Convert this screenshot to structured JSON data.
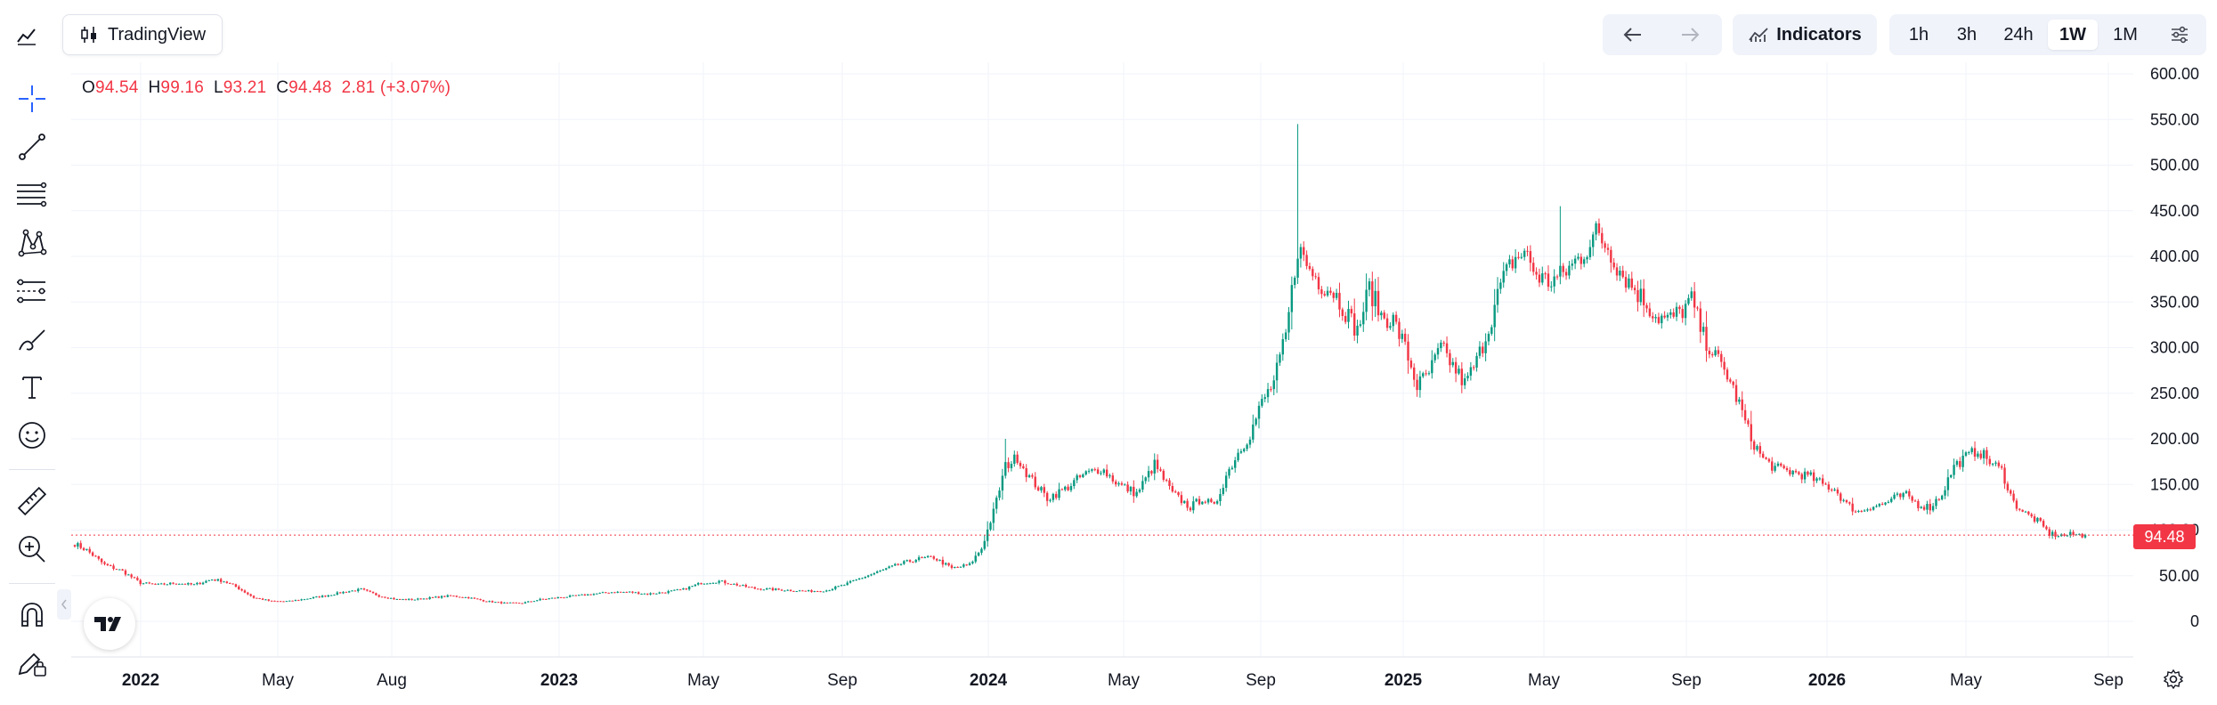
{
  "header": {
    "app_name": "TradingView",
    "indicators_label": "Indicators",
    "timeframes": [
      "1h",
      "3h",
      "24h",
      "1W",
      "1M"
    ],
    "active_timeframe": "1W"
  },
  "legend": {
    "o_key": "O",
    "o_val": "94.54",
    "h_key": "H",
    "h_val": "99.16",
    "l_key": "L",
    "l_val": "93.21",
    "c_key": "C",
    "c_val": "94.48",
    "change": "2.81 (+3.07%)"
  },
  "last_price_label": "94.48",
  "colors": {
    "up": "#089981",
    "down": "#f23645",
    "accent": "#2962ff"
  },
  "chart_data": {
    "type": "candlestick",
    "y_ticks": [
      "600.00",
      "550.00",
      "500.00",
      "450.00",
      "400.00",
      "350.00",
      "300.00",
      "250.00",
      "200.00",
      "150.00",
      "100.00",
      "50.00",
      "0"
    ],
    "y_tick_values": [
      600,
      550,
      500,
      450,
      400,
      350,
      300,
      250,
      200,
      150,
      100,
      50,
      0
    ],
    "ylim": [
      -10,
      610
    ],
    "x_ticks": [
      {
        "label": "2022",
        "bold": true
      },
      {
        "label": "May",
        "bold": false
      },
      {
        "label": "Aug",
        "bold": false
      },
      {
        "label": "2023",
        "bold": true
      },
      {
        "label": "May",
        "bold": false
      },
      {
        "label": "Sep",
        "bold": false
      },
      {
        "label": "2024",
        "bold": true
      },
      {
        "label": "May",
        "bold": false
      },
      {
        "label": "Sep",
        "bold": false
      },
      {
        "label": "2025",
        "bold": true
      },
      {
        "label": "May",
        "bold": false
      },
      {
        "label": "Sep",
        "bold": false
      },
      {
        "label": "2026",
        "bold": true
      },
      {
        "label": "May",
        "bold": false
      },
      {
        "label": "Sep",
        "bold": false
      }
    ],
    "last_price": 94.48,
    "anchors": [
      [
        0,
        85
      ],
      [
        4,
        78
      ],
      [
        10,
        62
      ],
      [
        16,
        55
      ],
      [
        22,
        42
      ],
      [
        28,
        40
      ],
      [
        34,
        42
      ],
      [
        40,
        40
      ],
      [
        46,
        46
      ],
      [
        50,
        44
      ],
      [
        54,
        38
      ],
      [
        60,
        26
      ],
      [
        66,
        22
      ],
      [
        72,
        22
      ],
      [
        78,
        25
      ],
      [
        84,
        28
      ],
      [
        90,
        32
      ],
      [
        96,
        35
      ],
      [
        102,
        28
      ],
      [
        108,
        24
      ],
      [
        114,
        24
      ],
      [
        120,
        26
      ],
      [
        126,
        28
      ],
      [
        132,
        26
      ],
      [
        138,
        22
      ],
      [
        144,
        20
      ],
      [
        150,
        20
      ],
      [
        156,
        24
      ],
      [
        162,
        26
      ],
      [
        168,
        28
      ],
      [
        174,
        30
      ],
      [
        180,
        32
      ],
      [
        186,
        32
      ],
      [
        192,
        30
      ],
      [
        198,
        32
      ],
      [
        204,
        35
      ],
      [
        210,
        42
      ],
      [
        216,
        44
      ],
      [
        222,
        40
      ],
      [
        228,
        36
      ],
      [
        234,
        35
      ],
      [
        240,
        34
      ],
      [
        246,
        33
      ],
      [
        252,
        34
      ],
      [
        258,
        40
      ],
      [
        264,
        48
      ],
      [
        270,
        55
      ],
      [
        276,
        62
      ],
      [
        282,
        68
      ],
      [
        288,
        70
      ],
      [
        294,
        58
      ],
      [
        300,
        62
      ],
      [
        304,
        80
      ],
      [
        308,
        120
      ],
      [
        312,
        170
      ],
      [
        316,
        180
      ],
      [
        320,
        158
      ],
      [
        326,
        135
      ],
      [
        332,
        145
      ],
      [
        338,
        160
      ],
      [
        344,
        168
      ],
      [
        350,
        150
      ],
      [
        356,
        140
      ],
      [
        362,
        172
      ],
      [
        368,
        140
      ],
      [
        374,
        125
      ],
      [
        378,
        135
      ],
      [
        382,
        125
      ],
      [
        386,
        160
      ],
      [
        390,
        185
      ],
      [
        394,
        205
      ],
      [
        398,
        240
      ],
      [
        402,
        262
      ],
      [
        406,
        312
      ],
      [
        410,
        410
      ],
      [
        414,
        385
      ],
      [
        418,
        370
      ],
      [
        422,
        362
      ],
      [
        426,
        340
      ],
      [
        430,
        318
      ],
      [
        434,
        365
      ],
      [
        438,
        335
      ],
      [
        442,
        330
      ],
      [
        446,
        300
      ],
      [
        450,
        258
      ],
      [
        454,
        272
      ],
      [
        458,
        300
      ],
      [
        462,
        280
      ],
      [
        466,
        260
      ],
      [
        470,
        285
      ],
      [
        474,
        322
      ],
      [
        478,
        368
      ],
      [
        482,
        395
      ],
      [
        486,
        405
      ],
      [
        490,
        380
      ],
      [
        494,
        372
      ],
      [
        498,
        378
      ],
      [
        502,
        390
      ],
      [
        506,
        405
      ],
      [
        510,
        425
      ],
      [
        514,
        410
      ],
      [
        518,
        385
      ],
      [
        522,
        368
      ],
      [
        526,
        352
      ],
      [
        530,
        335
      ],
      [
        534,
        330
      ],
      [
        538,
        338
      ],
      [
        542,
        352
      ],
      [
        546,
        312
      ],
      [
        550,
        290
      ],
      [
        554,
        270
      ],
      [
        558,
        238
      ],
      [
        562,
        200
      ],
      [
        566,
        178
      ],
      [
        570,
        168
      ],
      [
        574,
        165
      ],
      [
        578,
        162
      ],
      [
        582,
        158
      ],
      [
        586,
        150
      ],
      [
        590,
        145
      ],
      [
        594,
        128
      ],
      [
        598,
        120
      ],
      [
        602,
        126
      ],
      [
        606,
        128
      ],
      [
        610,
        135
      ],
      [
        614,
        138
      ],
      [
        618,
        128
      ],
      [
        622,
        125
      ],
      [
        626,
        140
      ],
      [
        630,
        170
      ],
      [
        634,
        180
      ],
      [
        638,
        188
      ],
      [
        642,
        175
      ],
      [
        646,
        165
      ],
      [
        650,
        130
      ],
      [
        654,
        118
      ],
      [
        658,
        110
      ],
      [
        662,
        96
      ],
      [
        666,
        94
      ],
      [
        670,
        95
      ],
      [
        674,
        94.5
      ]
    ],
    "candle_count": 675
  }
}
